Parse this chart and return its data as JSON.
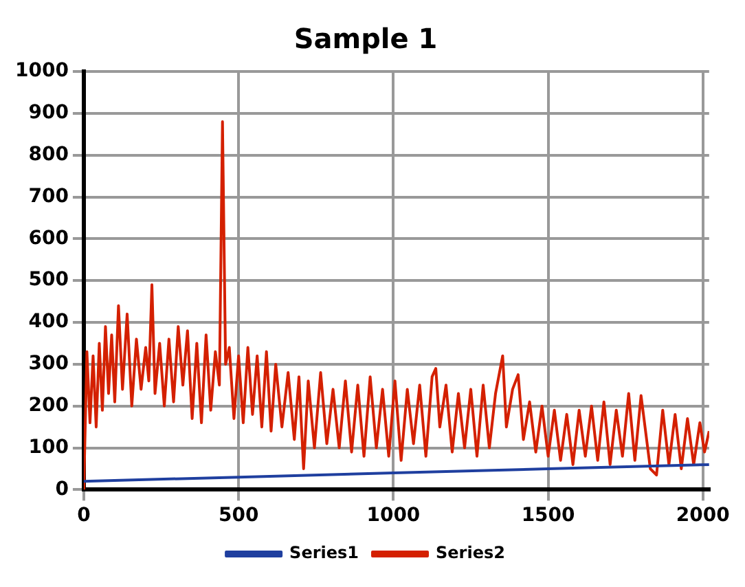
{
  "chart_data": {
    "type": "line",
    "title": "Sample 1",
    "xlim": [
      0,
      2020
    ],
    "xticks": [
      0,
      500,
      1000,
      1500,
      2000
    ],
    "ylim": [
      0,
      1000
    ],
    "yticks": [
      0,
      100,
      200,
      300,
      400,
      500,
      600,
      700,
      800,
      900,
      1000
    ],
    "grid": true,
    "legend": "bottom",
    "marker": "none",
    "line_style": "solid",
    "series": [
      {
        "name": "Series1",
        "color": "#1f3f9f",
        "x": [
          0,
          500,
          1000,
          1500,
          2020
        ],
        "values": [
          20,
          30,
          40,
          50,
          60
        ]
      },
      {
        "name": "Series2",
        "color": "#d42000",
        "x": [
          0,
          10,
          20,
          30,
          40,
          50,
          60,
          70,
          80,
          90,
          100,
          112,
          125,
          140,
          155,
          170,
          185,
          200,
          210,
          220,
          230,
          245,
          260,
          275,
          290,
          305,
          320,
          335,
          350,
          365,
          380,
          395,
          410,
          425,
          438,
          448,
          458,
          470,
          485,
          500,
          515,
          530,
          545,
          560,
          575,
          590,
          605,
          620,
          640,
          660,
          680,
          695,
          710,
          725,
          745,
          765,
          785,
          805,
          825,
          845,
          865,
          885,
          905,
          925,
          945,
          965,
          985,
          1005,
          1025,
          1045,
          1065,
          1085,
          1105,
          1125,
          1137,
          1150,
          1170,
          1190,
          1210,
          1230,
          1250,
          1270,
          1290,
          1310,
          1330,
          1353,
          1365,
          1385,
          1403,
          1420,
          1440,
          1460,
          1480,
          1500,
          1520,
          1540,
          1560,
          1580,
          1600,
          1620,
          1640,
          1660,
          1680,
          1700,
          1720,
          1740,
          1760,
          1780,
          1800,
          1830,
          1850,
          1870,
          1890,
          1910,
          1930,
          1950,
          1970,
          1990,
          2005,
          2020
        ],
        "values": [
          0,
          330,
          160,
          320,
          150,
          350,
          190,
          390,
          230,
          370,
          210,
          440,
          240,
          420,
          200,
          360,
          240,
          340,
          260,
          490,
          230,
          350,
          200,
          360,
          210,
          390,
          250,
          380,
          170,
          350,
          160,
          370,
          190,
          330,
          250,
          880,
          300,
          340,
          170,
          320,
          160,
          340,
          180,
          320,
          150,
          330,
          140,
          300,
          150,
          280,
          120,
          270,
          50,
          260,
          100,
          280,
          110,
          240,
          100,
          260,
          90,
          250,
          80,
          270,
          100,
          240,
          80,
          260,
          70,
          240,
          110,
          250,
          80,
          270,
          290,
          150,
          250,
          90,
          230,
          100,
          240,
          80,
          250,
          100,
          230,
          320,
          150,
          240,
          275,
          120,
          210,
          90,
          200,
          80,
          190,
          70,
          180,
          60,
          190,
          80,
          200,
          70,
          210,
          60,
          190,
          80,
          230,
          70,
          225,
          50,
          35,
          190,
          60,
          180,
          50,
          170,
          60,
          160,
          90,
          140
        ]
      }
    ]
  }
}
